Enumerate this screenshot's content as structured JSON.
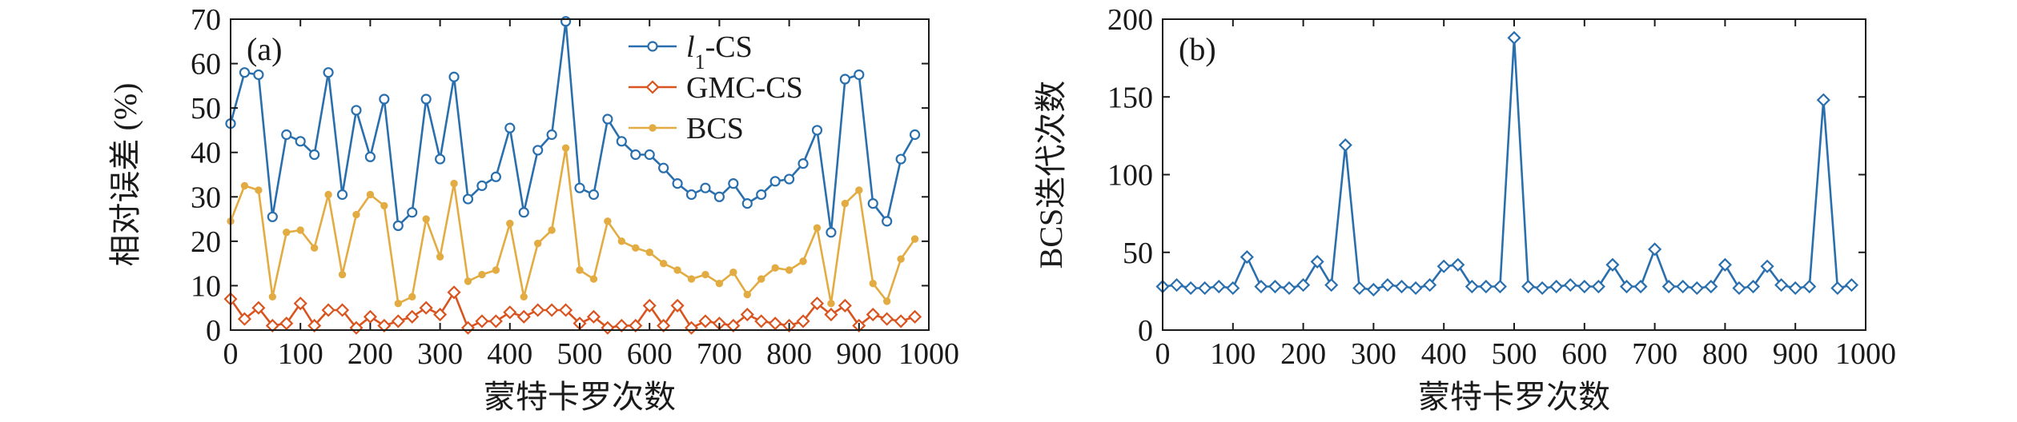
{
  "chart_data": [
    {
      "type": "line",
      "panel_label": "(a)",
      "xlabel": "蒙特卡罗次数",
      "ylabel": "相对误差 (%)",
      "xlim": [
        0,
        1000
      ],
      "ylim": [
        0,
        70
      ],
      "xticks": [
        0,
        100,
        200,
        300,
        400,
        500,
        600,
        700,
        800,
        900,
        1000
      ],
      "yticks": [
        0,
        10,
        20,
        30,
        40,
        50,
        60,
        70
      ],
      "grid": false,
      "legend_position": "top-center",
      "x": [
        0,
        20,
        40,
        60,
        80,
        100,
        120,
        140,
        160,
        180,
        200,
        220,
        240,
        260,
        280,
        300,
        320,
        340,
        360,
        380,
        400,
        420,
        440,
        460,
        480,
        500,
        520,
        540,
        560,
        580,
        600,
        620,
        640,
        660,
        680,
        700,
        720,
        740,
        760,
        780,
        800,
        820,
        840,
        860,
        880,
        900,
        920,
        940,
        960,
        980
      ],
      "series": [
        {
          "name_main": "l",
          "name_sub": "1",
          "name_rest": "-CS",
          "color": "#2a6fad",
          "marker": "circle",
          "values": [
            46.5,
            58,
            57.5,
            25.5,
            44,
            42.5,
            39.5,
            58,
            30.5,
            49.5,
            39,
            52,
            23.5,
            26.5,
            52,
            38.5,
            57,
            29.5,
            32.5,
            34.5,
            45.5,
            26.5,
            40.5,
            44,
            69.5,
            32,
            30.5,
            47.5,
            42.5,
            39.5,
            39.5,
            36.5,
            33,
            30.5,
            32,
            30,
            33,
            28.5,
            30.5,
            33.5,
            34,
            37.5,
            45,
            22,
            56.5,
            57.5,
            28.5,
            24.5,
            38.5,
            44
          ]
        },
        {
          "name": "GMC-CS",
          "color": "#d9541e",
          "marker": "diamond",
          "values": [
            7,
            2.5,
            5,
            1,
            1.5,
            6,
            1,
            4.5,
            4.5,
            0.5,
            3,
            1,
            2,
            3,
            5,
            3.5,
            8.5,
            0.5,
            2,
            2,
            4,
            3,
            4.5,
            4.5,
            4.5,
            1.5,
            3,
            0.5,
            1,
            1,
            5.5,
            1,
            5.5,
            0.5,
            2,
            1.5,
            1,
            3.5,
            2,
            1.5,
            1,
            2,
            6,
            3.5,
            5.5,
            1,
            3.5,
            2.5,
            2,
            3
          ]
        },
        {
          "name": "BCS",
          "color": "#e3ac42",
          "marker": "dot",
          "values": [
            24.5,
            32.5,
            31.5,
            7.5,
            22,
            22.5,
            18.5,
            30.5,
            12.5,
            26,
            30.5,
            28,
            6,
            7.5,
            25,
            16.5,
            33,
            11,
            12.5,
            13.5,
            24,
            7.5,
            19.5,
            22.5,
            41,
            13.5,
            11.5,
            24.5,
            20,
            18.5,
            17.5,
            15,
            13.5,
            11.5,
            12.5,
            10.5,
            13,
            8,
            11.5,
            14,
            13.5,
            15.5,
            23,
            6,
            28.5,
            31.5,
            10.5,
            6.5,
            16,
            20.5
          ]
        }
      ]
    },
    {
      "type": "line",
      "panel_label": "(b)",
      "xlabel": "蒙特卡罗次数",
      "ylabel": "BCS迭代次数",
      "xlim": [
        0,
        1000
      ],
      "ylim": [
        0,
        200
      ],
      "xticks": [
        0,
        100,
        200,
        300,
        400,
        500,
        600,
        700,
        800,
        900,
        1000
      ],
      "yticks": [
        0,
        50,
        100,
        150,
        200
      ],
      "grid": false,
      "x": [
        0,
        20,
        40,
        60,
        80,
        100,
        120,
        140,
        160,
        180,
        200,
        220,
        240,
        260,
        280,
        300,
        320,
        340,
        360,
        380,
        400,
        420,
        440,
        460,
        480,
        500,
        520,
        540,
        560,
        580,
        600,
        620,
        640,
        660,
        680,
        700,
        720,
        740,
        760,
        780,
        800,
        820,
        840,
        860,
        880,
        900,
        920,
        940,
        960,
        980
      ],
      "series": [
        {
          "color": "#2a6fad",
          "marker": "diamond",
          "values": [
            28,
            29,
            27,
            27,
            28,
            27,
            47,
            28,
            28,
            27,
            29,
            44,
            29,
            119,
            27,
            26,
            29,
            28,
            27,
            29,
            41,
            42,
            28,
            28,
            28,
            188,
            28,
            27,
            28,
            29,
            28,
            28,
            42,
            28,
            28,
            52,
            28,
            28,
            27,
            28,
            42,
            27,
            28,
            41,
            29,
            27,
            28,
            148,
            27,
            29
          ]
        }
      ]
    }
  ]
}
